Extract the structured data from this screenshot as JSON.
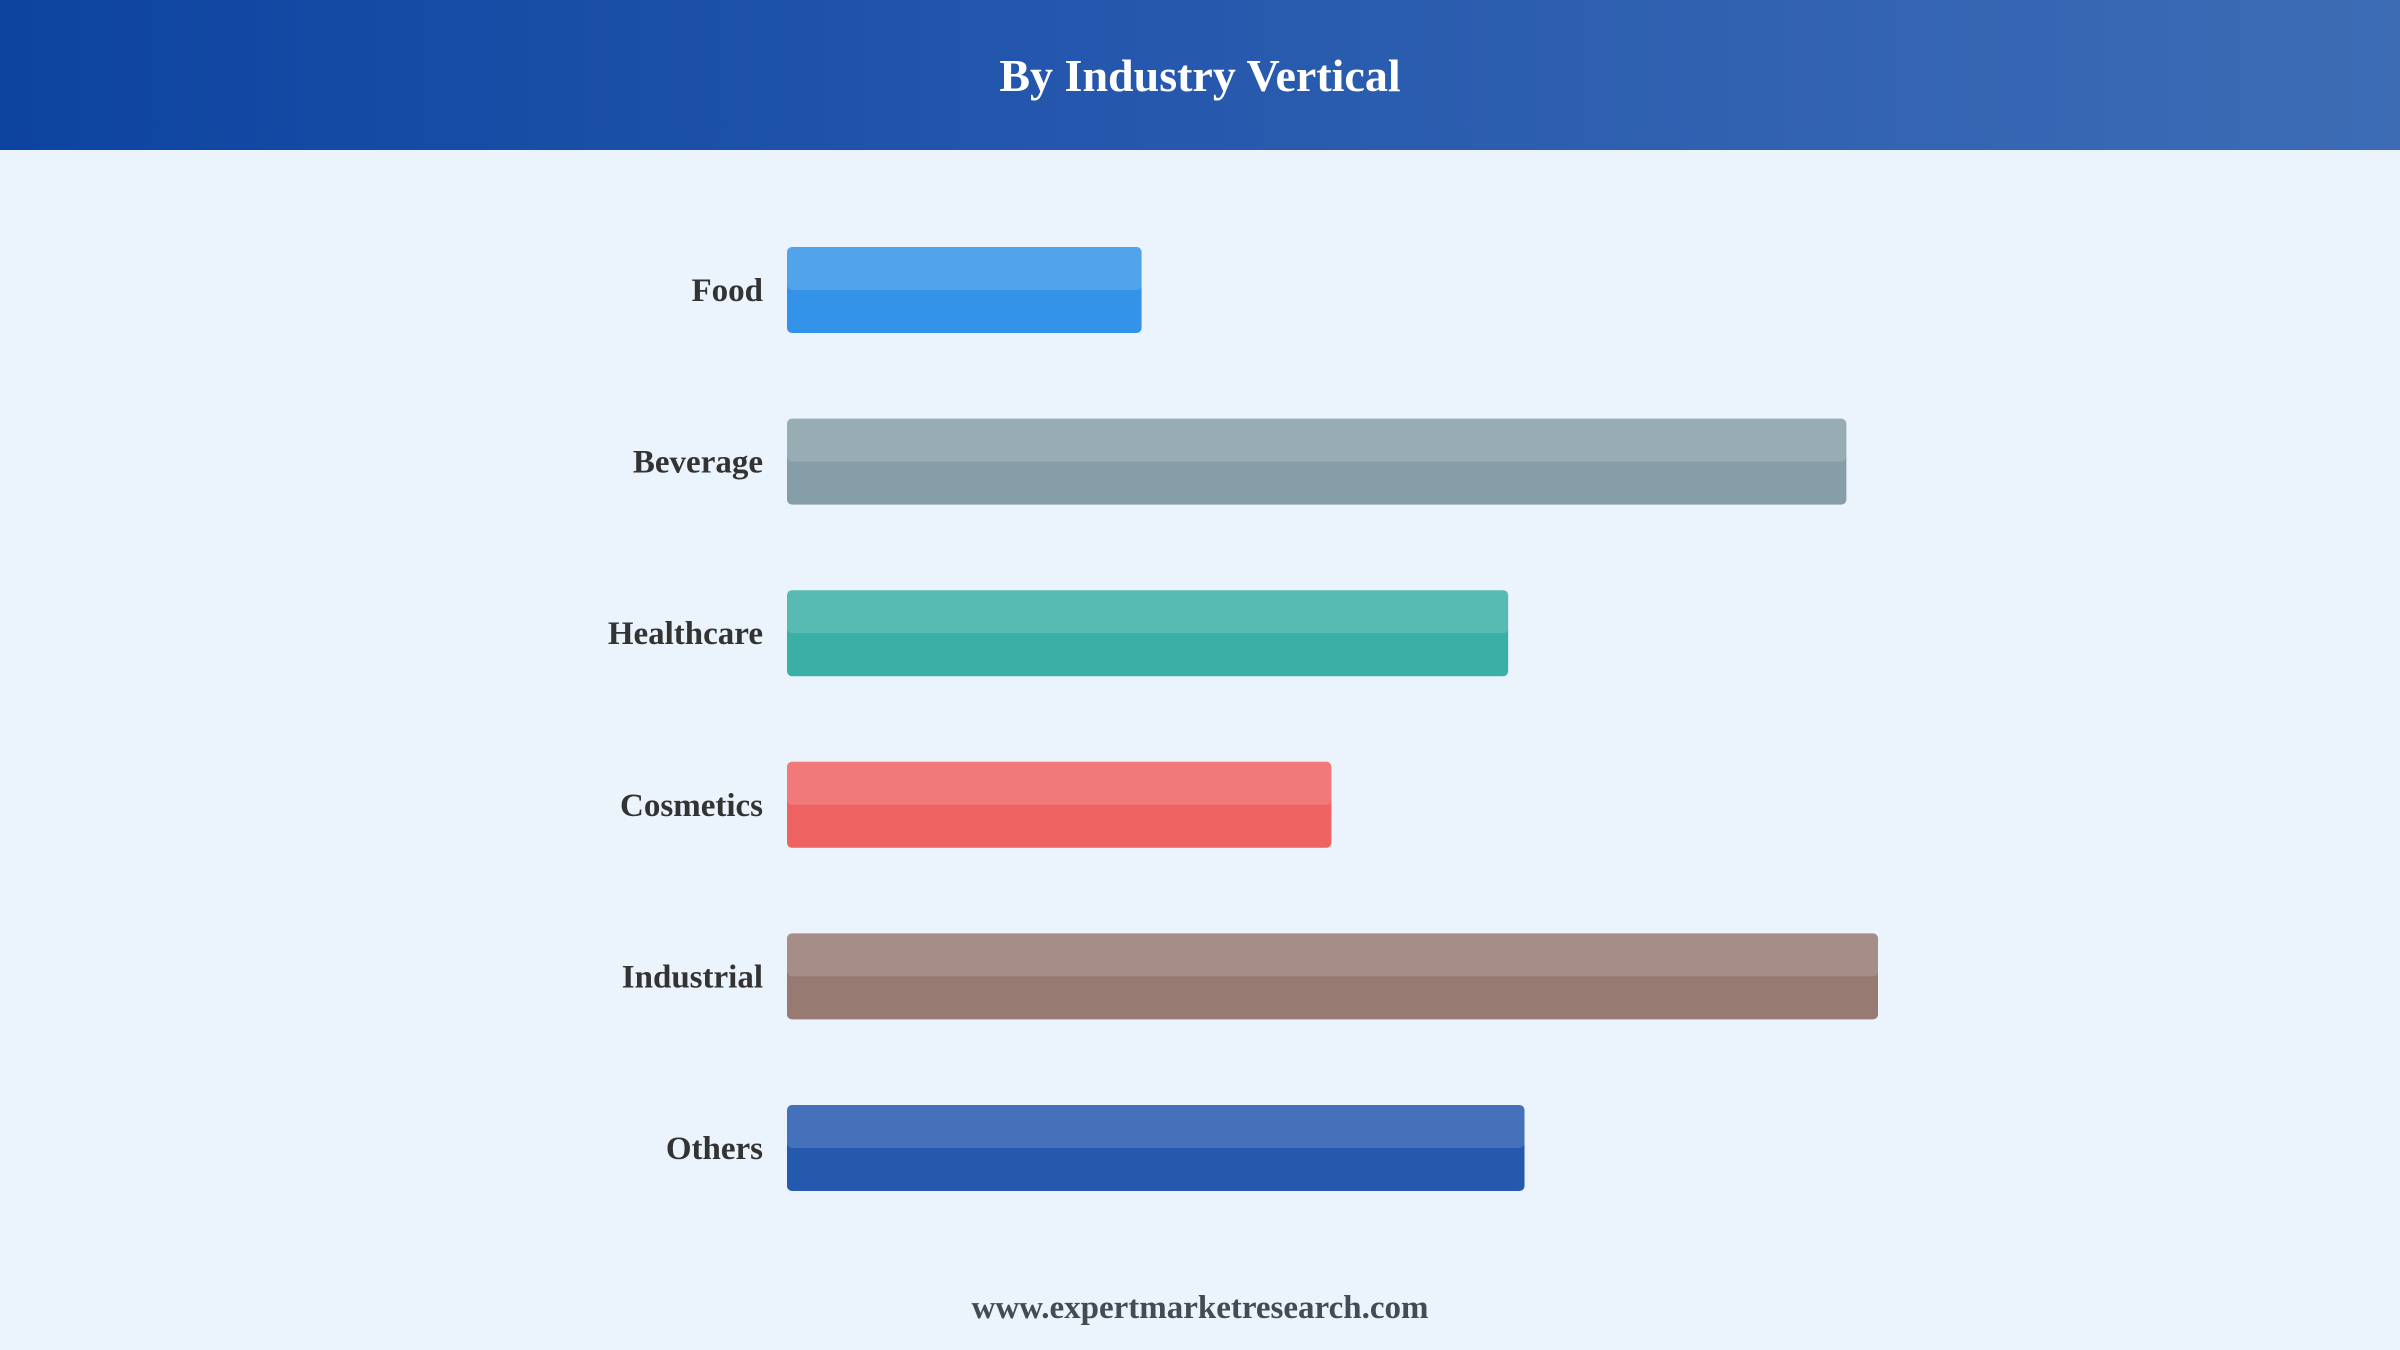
{
  "header": {
    "title": "By Industry Vertical"
  },
  "footer": {
    "text": "www.expertmarketresearch.com"
  },
  "chart_data": {
    "type": "bar",
    "orientation": "horizontal",
    "title": "By Industry Vertical",
    "categories": [
      "Food",
      "Beverage",
      "Healthcare",
      "Cosmetics",
      "Industrial",
      "Others"
    ],
    "values": [
      32.5,
      97.1,
      66.1,
      49.9,
      100,
      67.6
    ],
    "colors": [
      "#3393e8",
      "#869ea7",
      "#3aafa6",
      "#ef6262",
      "#977a72",
      "#2459ad"
    ],
    "xlim": [
      0,
      100
    ],
    "grid": false,
    "legend": "none"
  }
}
